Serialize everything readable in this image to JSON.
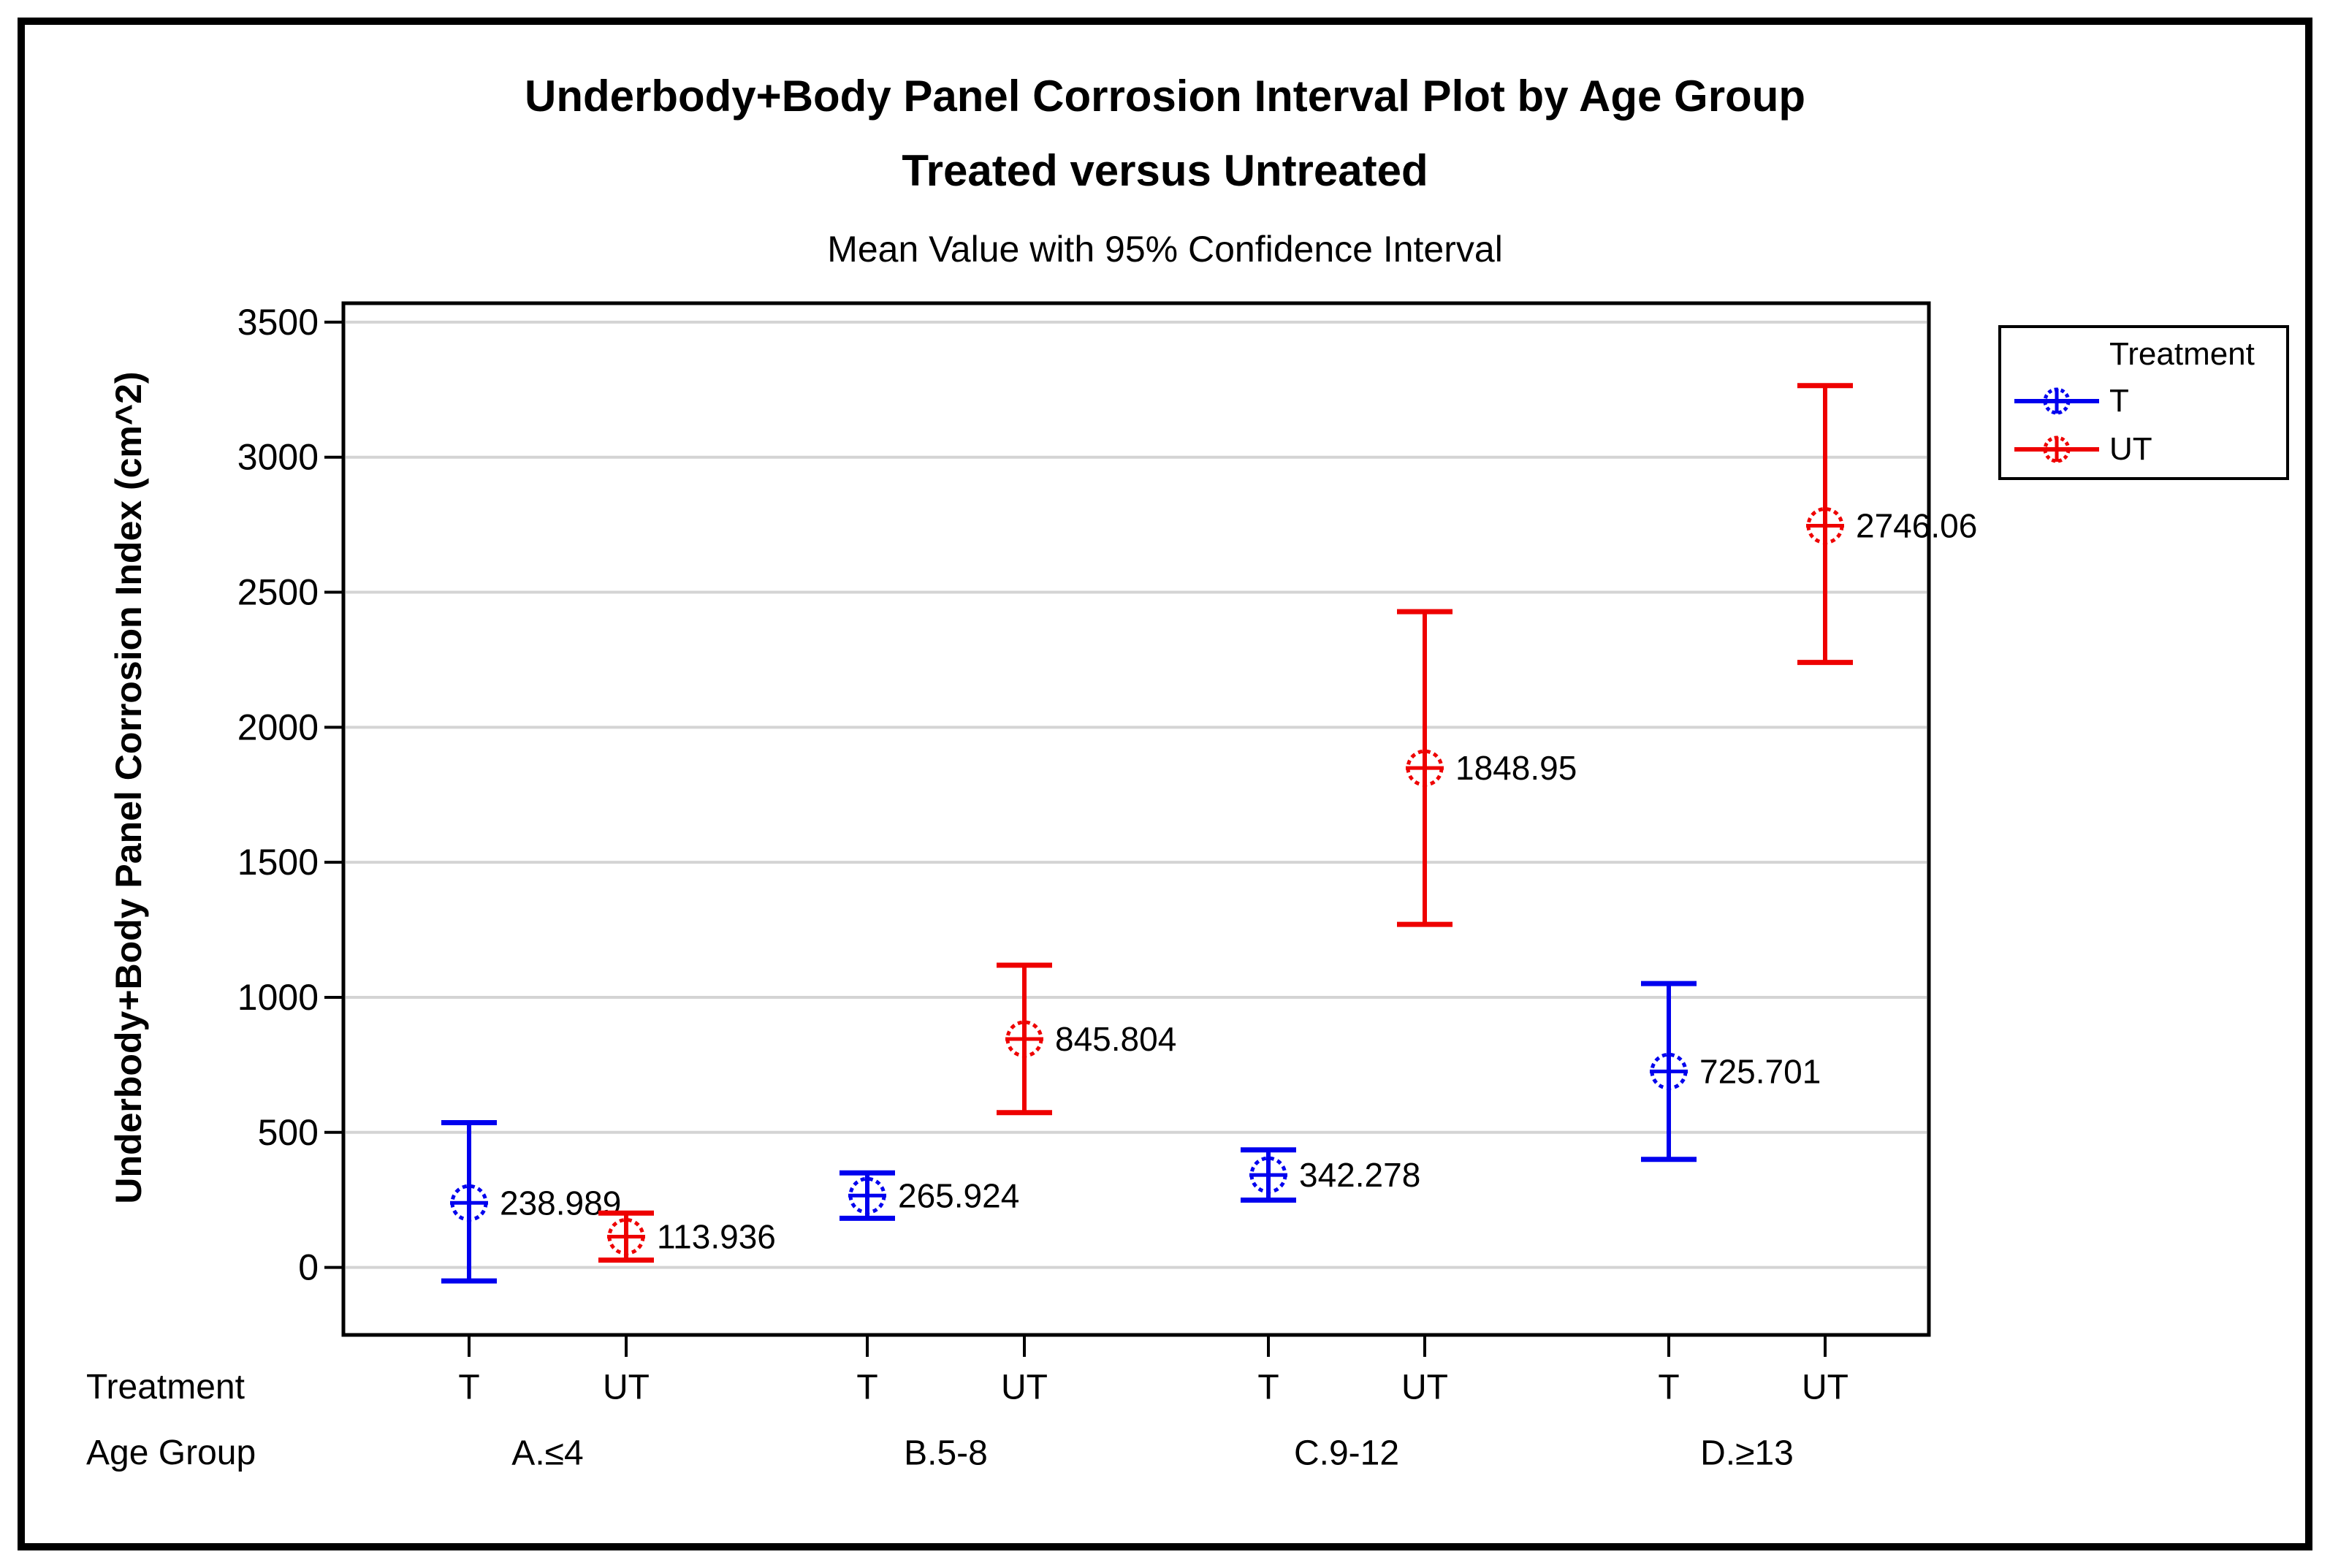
{
  "title": {
    "line1": "Underbody+Body Panel Corrosion Interval Plot by Age Group",
    "line2": "Treated versus Untreated",
    "subtitle": "Mean Value with 95% Confidence Interval"
  },
  "y_axis": {
    "label": "Underbody+Body Panel Corrosion Index (cm^2)"
  },
  "x_axis": {
    "row_header_treatment": "Treatment",
    "row_header_age_group": "Age Group"
  },
  "legend": {
    "title": "Treatment",
    "entries": [
      {
        "label": "T",
        "color": "#0000ee"
      },
      {
        "label": "UT",
        "color": "#ee0000"
      }
    ]
  },
  "colors": {
    "treated": "#0000ee",
    "untreated": "#ee0000",
    "gridline": "#d4d4d4",
    "axis": "#000000"
  },
  "chart_data": {
    "type": "scatter",
    "subtype": "interval_plot_mean_95ci",
    "title": "Underbody+Body Panel Corrosion Interval Plot by Age Group",
    "title2": "Treated versus Untreated",
    "subtitle": "Mean Value with 95% Confidence Interval",
    "ylabel": "Underbody+Body Panel Corrosion Index (cm^2)",
    "xlabel_rows": [
      "Treatment",
      "Age Group"
    ],
    "ylim": [
      -250,
      3570
    ],
    "yticks": [
      0,
      500,
      1000,
      1500,
      2000,
      2500,
      3000,
      3500
    ],
    "grid": true,
    "legend_position": "right",
    "legend_title": "Treatment",
    "series_names": [
      "T",
      "UT"
    ],
    "groups": [
      {
        "age_group": "A.≤4",
        "points": [
          {
            "treatment": "T",
            "mean": 238.989,
            "label": "238.989",
            "ci_low": -50,
            "ci_high": 536,
            "color": "#0000ee"
          },
          {
            "treatment": "UT",
            "mean": 113.936,
            "label": "113.936",
            "ci_low": 27,
            "ci_high": 201,
            "color": "#ee0000"
          }
        ]
      },
      {
        "age_group": "B.5-8",
        "points": [
          {
            "treatment": "T",
            "mean": 265.924,
            "label": "265.924",
            "ci_low": 182,
            "ci_high": 350,
            "color": "#0000ee"
          },
          {
            "treatment": "UT",
            "mean": 845.804,
            "label": "845.804",
            "ci_low": 573,
            "ci_high": 1119,
            "color": "#ee0000"
          }
        ]
      },
      {
        "age_group": "C.9-12",
        "points": [
          {
            "treatment": "T",
            "mean": 342.278,
            "label": "342.278",
            "ci_low": 249,
            "ci_high": 435,
            "color": "#0000ee"
          },
          {
            "treatment": "UT",
            "mean": 1848.95,
            "label": "1848.95",
            "ci_low": 1270,
            "ci_high": 2428,
            "color": "#ee0000"
          }
        ]
      },
      {
        "age_group": "D.≥13",
        "points": [
          {
            "treatment": "T",
            "mean": 725.701,
            "label": "725.701",
            "ci_low": 400,
            "ci_high": 1051,
            "color": "#0000ee"
          },
          {
            "treatment": "UT",
            "mean": 2746.06,
            "label": "2746.06",
            "ci_low": 2240,
            "ci_high": 3265,
            "color": "#ee0000"
          }
        ]
      }
    ]
  }
}
